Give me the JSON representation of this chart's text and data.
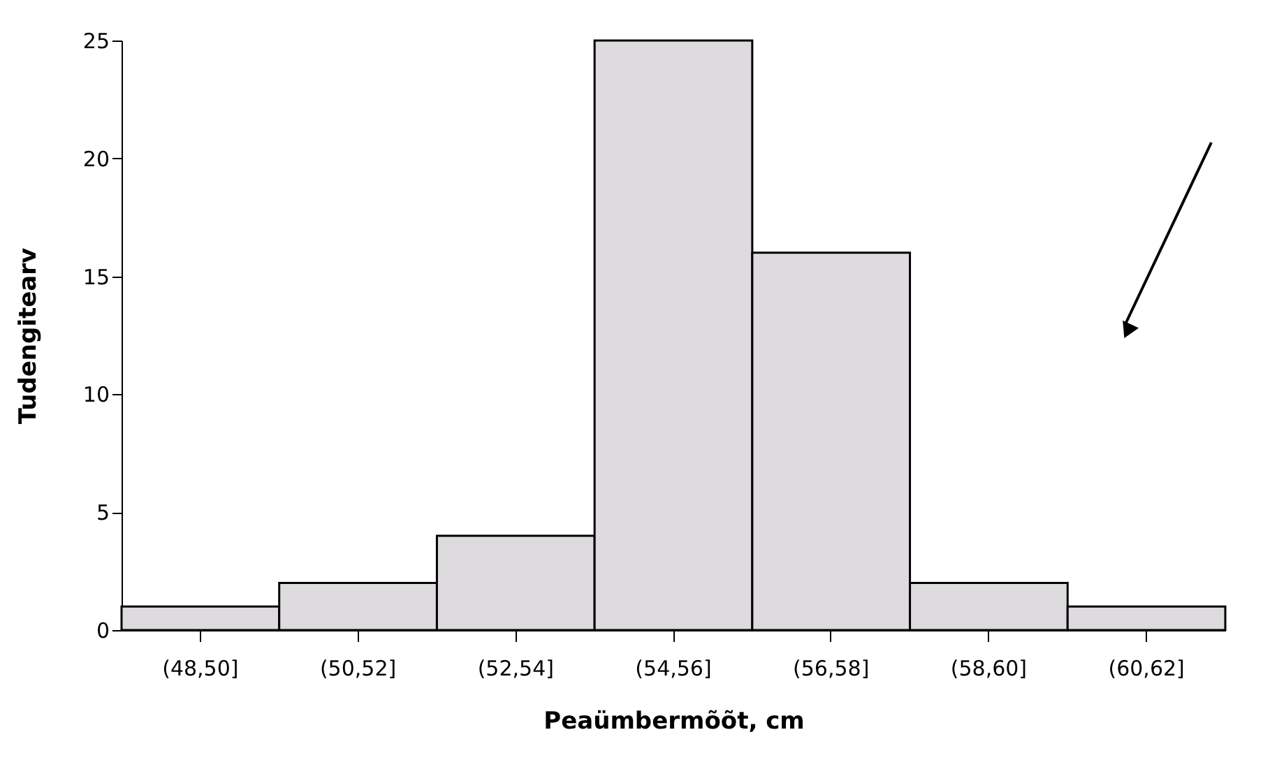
{
  "chart_data": {
    "type": "bar",
    "xlabel": "Peaümbermõõt, cm",
    "ylabel": "Tudengitearv",
    "categories": [
      "(48,50]",
      "(50,52]",
      "(52,54]",
      "(54,56]",
      "(56,58]",
      "(58,60]",
      "(60,62]"
    ],
    "values": [
      1,
      2,
      4,
      25,
      16,
      2,
      1
    ],
    "color": "#dddbdd",
    "ylim": [
      0,
      25
    ],
    "yticks": [
      0,
      5,
      10,
      15,
      20,
      25
    ],
    "grid": false
  }
}
